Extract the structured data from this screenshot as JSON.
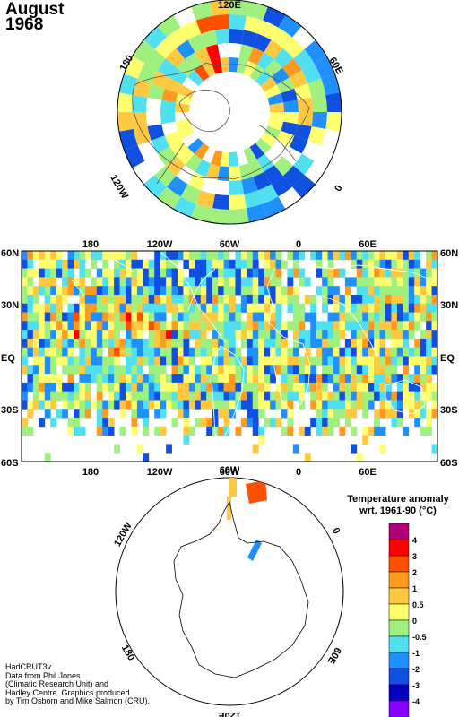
{
  "header": {
    "month": "August",
    "year": "1968"
  },
  "north_map": {
    "labels": [
      "120E",
      "60E",
      "0",
      "120W",
      "180"
    ]
  },
  "main_map": {
    "top_labels": [
      "180",
      "120W",
      "60W",
      "0",
      "60E"
    ],
    "bottom_labels": [
      "180",
      "120W",
      "60W",
      "0",
      "60E"
    ],
    "lat_labels": [
      "60N",
      "30N",
      "EQ",
      "30S",
      "60S"
    ]
  },
  "south_map": {
    "labels": [
      "60W",
      "0",
      "60E",
      "120E",
      "180",
      "120W"
    ]
  },
  "legend": {
    "title_line1": "Temperature anomaly",
    "title_line2": "wrt. 1961-90  (°C)",
    "ticks": [
      "4",
      "3",
      "2",
      "1",
      "0.5",
      "0",
      "-0.5",
      "-1",
      "-2",
      "-3",
      "-4"
    ],
    "colors": [
      "#b0007a",
      "#ff0000",
      "#ff5000",
      "#ff9a20",
      "#ffc840",
      "#ffff70",
      "#a0f080",
      "#50e0f0",
      "#2090ff",
      "#1050e0",
      "#0000c0",
      "#8800ff"
    ]
  },
  "credit": {
    "line1": "HadCRUT3v",
    "line2": "Data from Phil Jones",
    "line3": "(Climatic Research Unit) and",
    "line4": "Hadley Centre.  Graphics produced",
    "line5": "by Tim Osborn and Mike Salmon (CRU)."
  }
}
